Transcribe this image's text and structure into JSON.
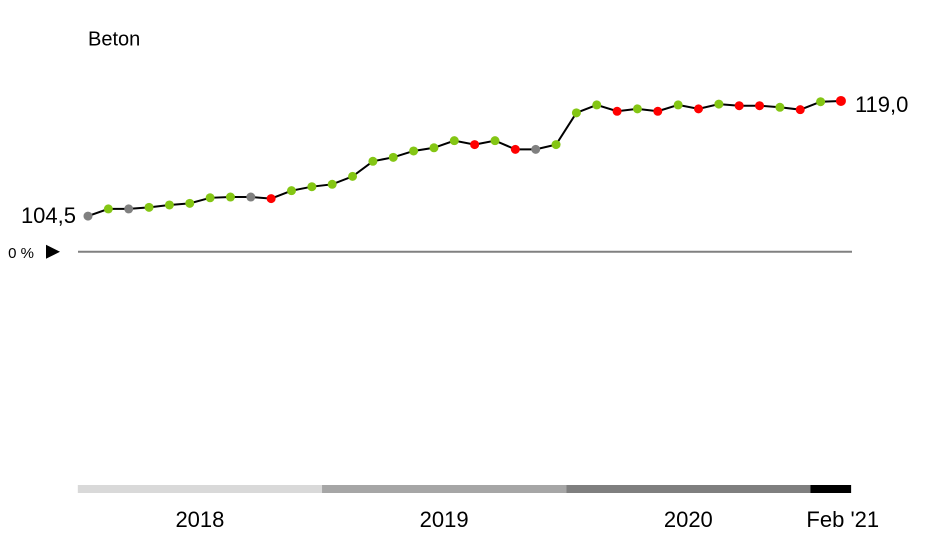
{
  "chart_data": {
    "type": "line",
    "title": "Beton",
    "series": [
      {
        "color": "#000000",
        "values": [
          104.5,
          105.4,
          105.4,
          105.6,
          105.9,
          106.1,
          106.8,
          106.9,
          106.9,
          106.7,
          107.7,
          108.2,
          108.5,
          109.5,
          111.4,
          111.9,
          112.7,
          113.1,
          114.0,
          113.5,
          114.0,
          112.9,
          112.9,
          113.5,
          117.5,
          118.5,
          117.7,
          118.0,
          117.7,
          118.5,
          118.0,
          118.6,
          118.4,
          118.4,
          118.2,
          117.9,
          118.9,
          119.0
        ],
        "value_labels": [
          "104,5",
          null,
          null,
          null,
          null,
          null,
          null,
          null,
          null,
          null,
          null,
          null,
          null,
          null,
          null,
          null,
          null,
          null,
          null,
          null,
          null,
          null,
          null,
          null,
          null,
          null,
          null,
          null,
          null,
          null,
          null,
          null,
          null,
          null,
          null,
          null,
          null,
          "119,0"
        ],
        "point_colors": [
          "#808080",
          "#84c614",
          "#808080",
          "#84c614",
          "#84c614",
          "#84c614",
          "#84c614",
          "#84c614",
          "#808080",
          "#ff0000",
          "#84c614",
          "#84c614",
          "#84c614",
          "#84c614",
          "#84c614",
          "#84c614",
          "#84c614",
          "#84c614",
          "#84c614",
          "#ff0000",
          "#84c614",
          "#ff0000",
          "#808080",
          "#84c614",
          "#84c614",
          "#84c614",
          "#ff0000",
          "#84c614",
          "#ff0000",
          "#84c614",
          "#ff0000",
          "#84c614",
          "#ff0000",
          "#ff0000",
          "#84c614",
          "#ff0000",
          "#84c614",
          "#ff0000"
        ]
      }
    ],
    "ylim": [
      70,
      120
    ],
    "reference_line": {
      "value": 100,
      "label": "0 %",
      "color": "#808080"
    },
    "periods": [
      {
        "label": "2018",
        "color": "#d9d9d9",
        "count": 12
      },
      {
        "label": "2019",
        "color": "#a6a6a6",
        "count": 12
      },
      {
        "label": "2020",
        "color": "#7f7f7f",
        "count": 12
      },
      {
        "label": "Feb '21",
        "color": "#000000",
        "count": 2
      }
    ]
  }
}
